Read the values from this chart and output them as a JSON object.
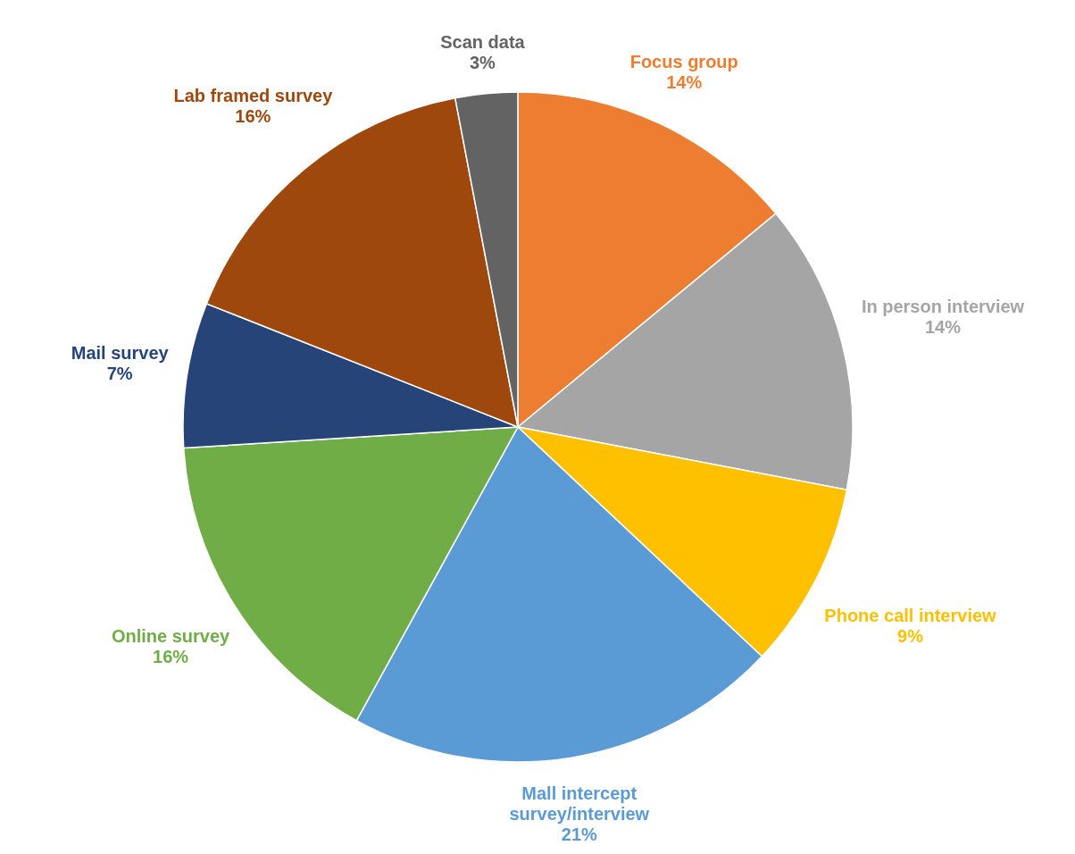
{
  "chart_data": {
    "type": "pie",
    "categories": [
      "Focus group",
      "In person interview",
      "Phone call interview",
      "Mall intercept survey/interview",
      "Online survey",
      "Mail survey",
      "Lab framed survey",
      "Scan data"
    ],
    "values": [
      14,
      14,
      9,
      21,
      16,
      7,
      16,
      3
    ],
    "colors": [
      "#ed7d31",
      "#a5a5a5",
      "#ffc000",
      "#5b9bd5",
      "#70ad47",
      "#264478",
      "#9e480e",
      "#636363"
    ],
    "value_labels": [
      "14%",
      "14%",
      "9%",
      "21%",
      "16%",
      "7%",
      "16%",
      "3%"
    ]
  }
}
